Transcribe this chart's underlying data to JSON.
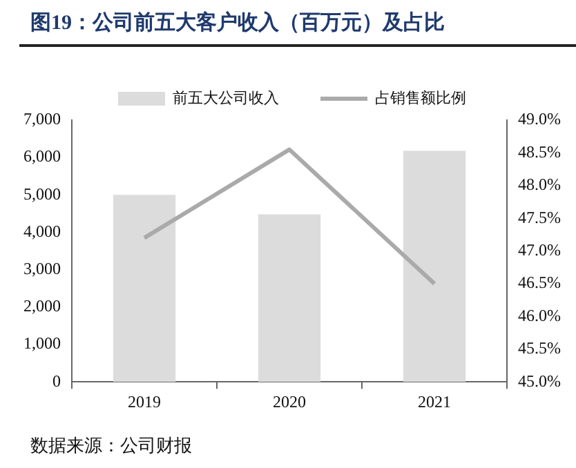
{
  "chart_data": {
    "type": "bar",
    "title": "图19：公司前五大客户收入（百万元）及占比",
    "categories": [
      "2019",
      "2020",
      "2021"
    ],
    "series": [
      {
        "name": "前五大公司收入",
        "color": "#dcdcdc",
        "values": [
          5000,
          4480,
          6180
        ]
      },
      {
        "name": "占销售额比例",
        "type": "line",
        "axis": "y2",
        "color": "#aaaaaa",
        "values": [
          47.2,
          48.55,
          46.5
        ]
      }
    ],
    "ylim": [
      0,
      7000
    ],
    "yticks": [
      0,
      {
        "value": 1000,
        "label": "1,000"
      },
      {
        "value": 2000,
        "label": "2,000"
      },
      {
        "value": 3000,
        "label": "3,000"
      },
      {
        "value": 4000,
        "label": "4,000"
      },
      {
        "value": 5000,
        "label": "5,000"
      },
      {
        "value": 6000,
        "label": "6,000"
      },
      {
        "value": 7000,
        "label": "7,000"
      }
    ],
    "y2lim": [
      45,
      49
    ],
    "y2ticks": [
      {
        "value": 45,
        "label": "45.0%"
      },
      {
        "value": 45.5,
        "label": "45.5%"
      },
      {
        "value": 46,
        "label": "46.0%"
      },
      {
        "value": 46.5,
        "label": "46.5%"
      },
      {
        "value": 47,
        "label": "47.0%"
      },
      {
        "value": 47.5,
        "label": "47.5%"
      },
      {
        "value": 48,
        "label": "48.0%"
      },
      {
        "value": 48.5,
        "label": "48.5%"
      },
      {
        "value": 49,
        "label": "49.0%"
      }
    ],
    "grid": false,
    "legend": "top",
    "marker": "none",
    "annotations": [
      "数据来源：公司财报"
    ]
  }
}
